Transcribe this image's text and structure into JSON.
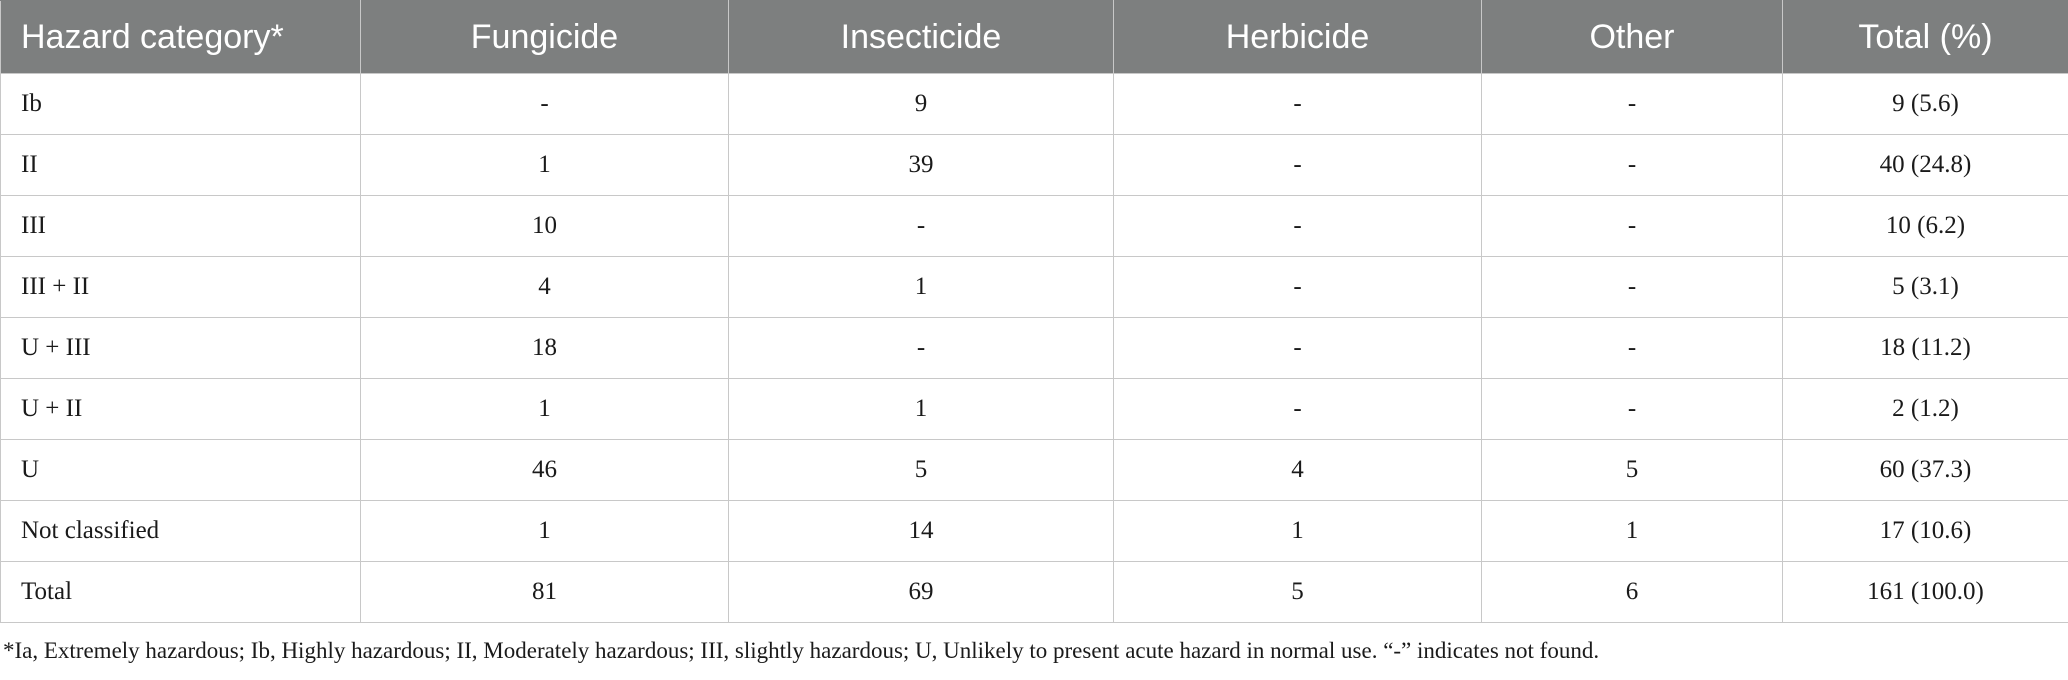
{
  "table": {
    "headers": [
      "Hazard category*",
      "Fungicide",
      "Insecticide",
      "Herbicide",
      "Other",
      "Total (%)"
    ],
    "rows": [
      [
        "Ib",
        "-",
        "9",
        "-",
        "-",
        "9 (5.6)"
      ],
      [
        "II",
        "1",
        "39",
        "-",
        "-",
        "40 (24.8)"
      ],
      [
        "III",
        "10",
        "-",
        "-",
        "-",
        "10 (6.2)"
      ],
      [
        "III + II",
        "4",
        "1",
        "-",
        "-",
        "5 (3.1)"
      ],
      [
        "U + III",
        "18",
        "-",
        "-",
        "-",
        "18 (11.2)"
      ],
      [
        "U + II",
        "1",
        "1",
        "-",
        "-",
        "2 (1.2)"
      ],
      [
        "U",
        "46",
        "5",
        "4",
        "5",
        "60 (37.3)"
      ],
      [
        "Not classified",
        "1",
        "14",
        "1",
        "1",
        "17 (10.6)"
      ],
      [
        "Total",
        "81",
        "69",
        "5",
        "6",
        "161 (100.0)"
      ]
    ]
  },
  "footnote": "*Ia, Extremely hazardous; Ib, Highly hazardous; II, Moderately hazardous; III, slightly hazardous; U, Unlikely to present acute hazard in normal use. “-” indicates not found.",
  "colors": {
    "header_background": "#7d7f7f",
    "header_text": "#ffffff",
    "grid_lines": "#c8c8c8",
    "body_text": "#1a1a1a"
  }
}
